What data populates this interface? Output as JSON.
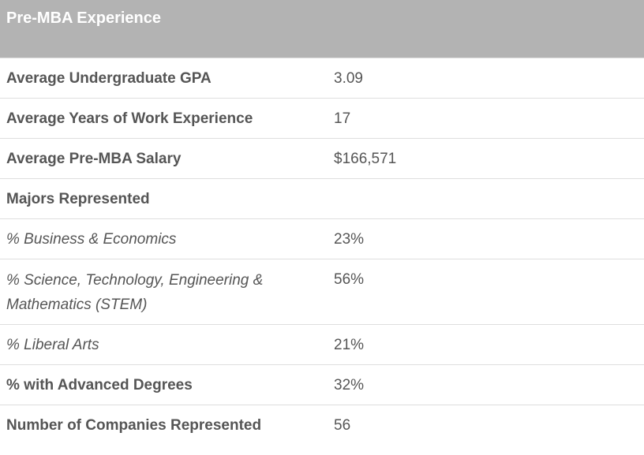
{
  "header": {
    "title": "Pre-MBA Experience"
  },
  "rows": [
    {
      "label": "Average Undergraduate GPA",
      "value": "3.09"
    },
    {
      "label": "Average Years of Work Experience",
      "value": "17"
    },
    {
      "label": "Average Pre-MBA Salary",
      "value": "$166,571"
    },
    {
      "label": "Majors Represented",
      "value": ""
    },
    {
      "label": "% Business & Economics",
      "value": "23%"
    },
    {
      "label": "% Science, Technology, Engineering & Mathematics (STEM)",
      "value": "56%"
    },
    {
      "label": "% Liberal Arts",
      "value": "21%"
    },
    {
      "label": "% with Advanced Degrees",
      "value": "32%"
    },
    {
      "label": "Number of Companies Represented",
      "value": "56"
    }
  ]
}
